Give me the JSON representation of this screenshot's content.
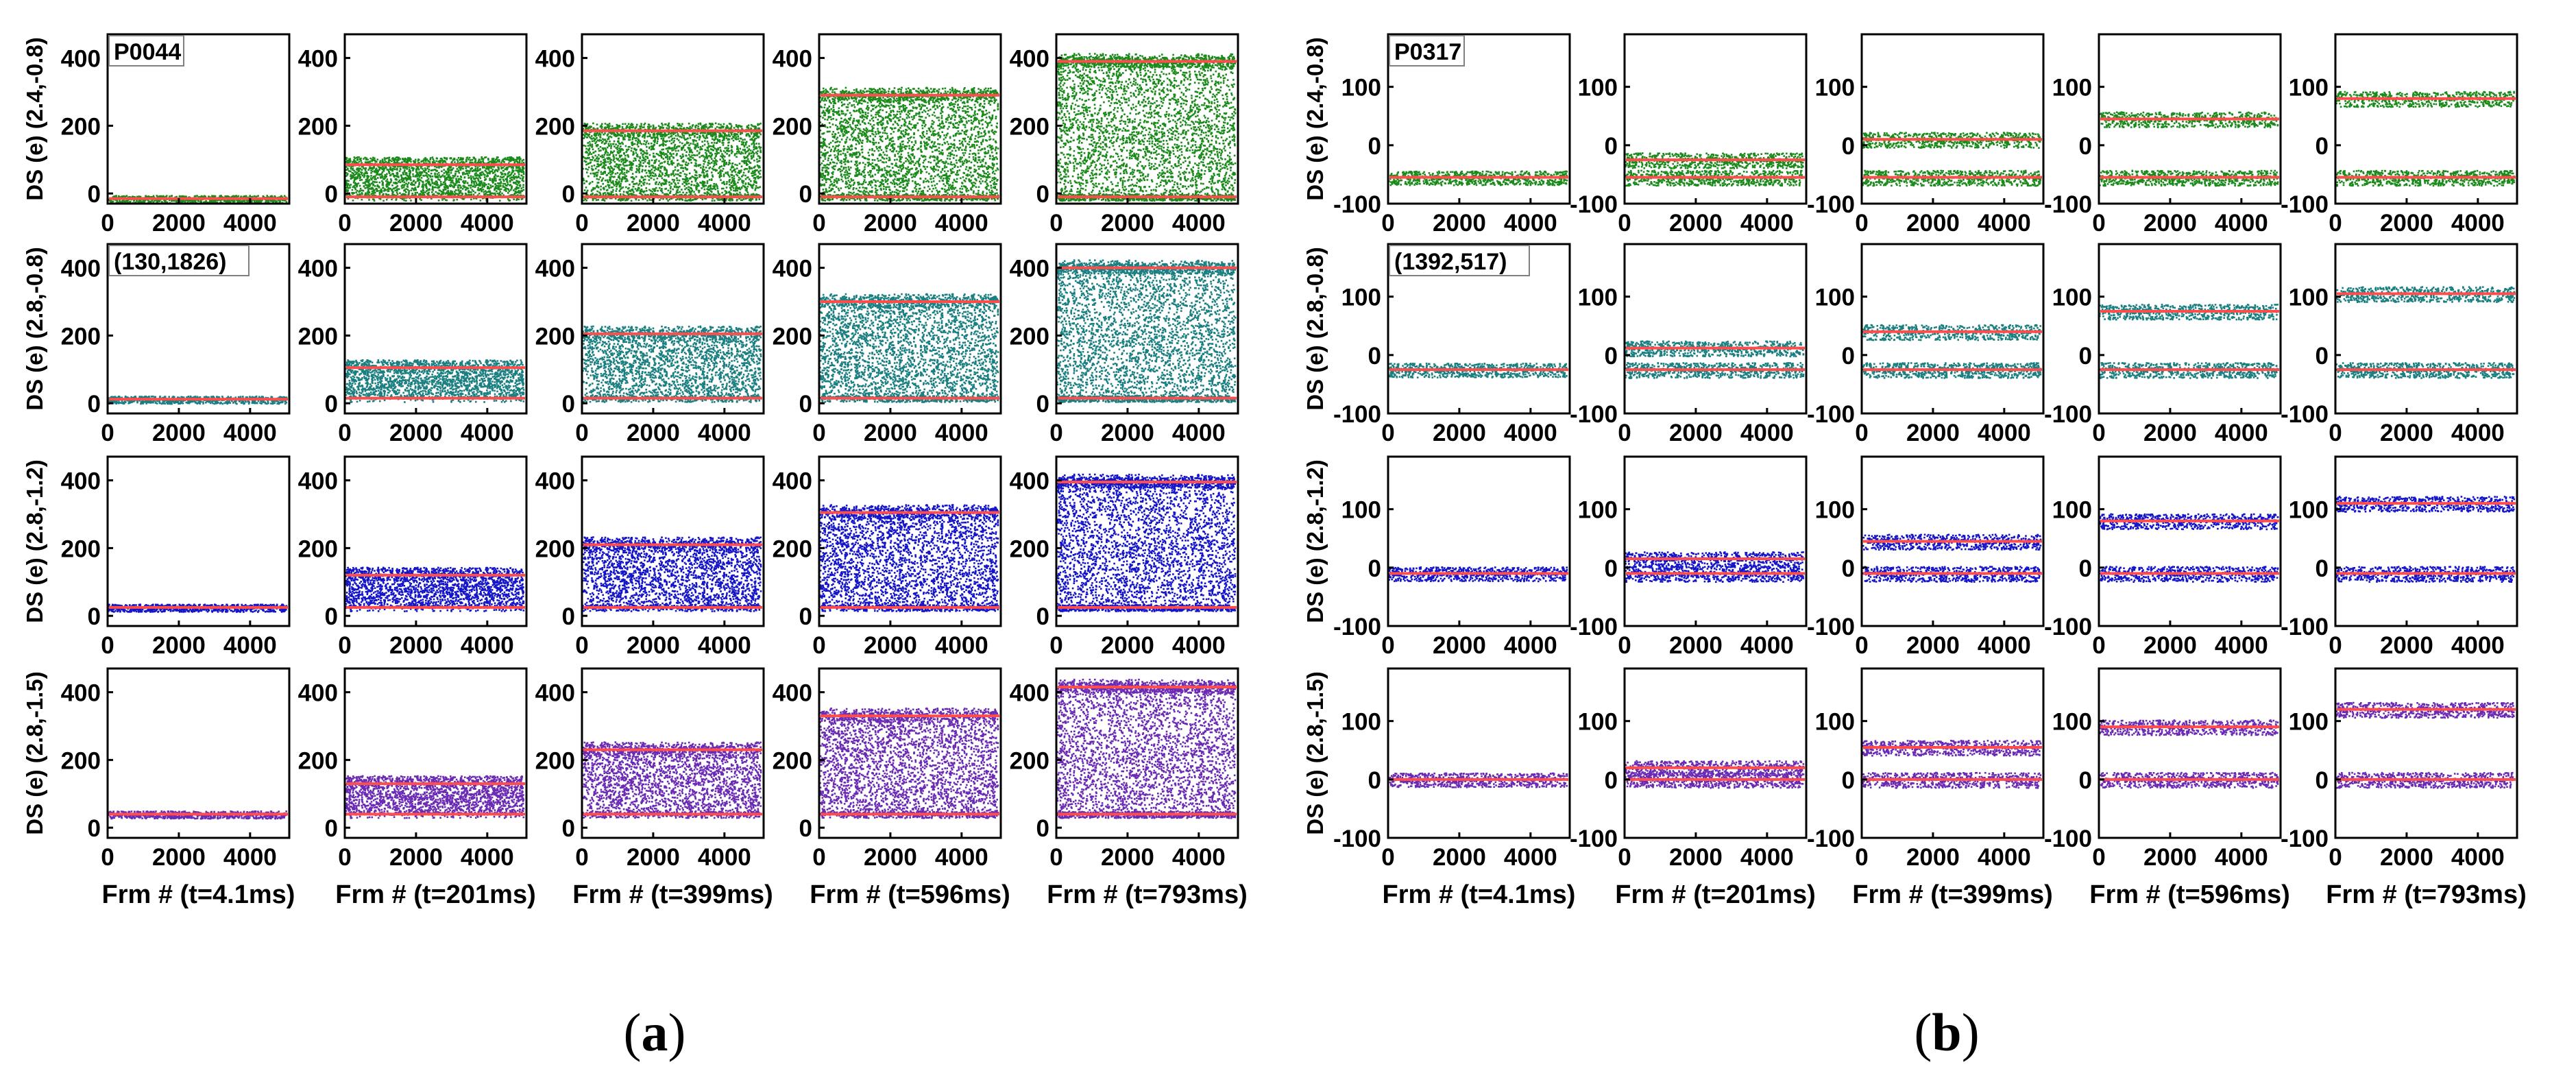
{
  "colors": {
    "row_colors": [
      "#1a8a1a",
      "#1a7f80",
      "#1414c8",
      "#6a2ab4"
    ],
    "fit_line": "#ff4d4d",
    "axis": "#000000"
  },
  "chart_data": [
    {
      "type": "scatter",
      "name": "panel-a",
      "caption": "a",
      "caption_prefix": "(",
      "caption_suffix": ")",
      "pixel_label": "P0044",
      "coord_label": "(130,1826)",
      "ylim": [
        -30,
        470
      ],
      "yticks": [
        0,
        200,
        400
      ],
      "xlim": [
        0,
        5100
      ],
      "xticks": [
        0,
        2000,
        4000
      ],
      "ylabels": [
        "DS (e) (2.4,-0.8)",
        "DS (e) (2.8,-0.8)",
        "DS (e) (2.8,-1.2)",
        "DS (e) (2.8,-1.5)"
      ],
      "xlabels": [
        "Frm # (t=4.1ms)",
        "Frm # (t=201ms)",
        "Frm # (t=399ms)",
        "Frm # (t=596ms)",
        "Frm # (t=793ms)"
      ],
      "fit_levels": [
        [
          [
            -15,
            -15
          ],
          [
            -10,
            85
          ],
          [
            -10,
            185
          ],
          [
            -10,
            290
          ],
          [
            -10,
            390
          ]
        ],
        [
          [
            12,
            12
          ],
          [
            15,
            105
          ],
          [
            15,
            205
          ],
          [
            15,
            300
          ],
          [
            15,
            400
          ]
        ],
        [
          [
            25,
            25
          ],
          [
            25,
            120
          ],
          [
            25,
            210
          ],
          [
            25,
            305
          ],
          [
            25,
            395
          ]
        ],
        [
          [
            40,
            40
          ],
          [
            40,
            130
          ],
          [
            40,
            230
          ],
          [
            40,
            330
          ],
          [
            40,
            415
          ]
        ]
      ],
      "point_density": [
        0.02,
        0.1,
        0.18,
        0.22,
        0.28
      ]
    },
    {
      "type": "scatter",
      "name": "panel-b",
      "caption": "b",
      "caption_prefix": "(",
      "caption_suffix": ")",
      "pixel_label": "P0317",
      "coord_label": "(1392,517)",
      "ylim": [
        -100,
        190
      ],
      "yticks": [
        -100,
        0,
        100
      ],
      "xlim": [
        0,
        5100
      ],
      "xticks": [
        0,
        2000,
        4000
      ],
      "ylabels": [
        "DS (e) (2.4,-0.8)",
        "DS (e) (2.8,-0.8)",
        "DS (e) (2.8,-1.2)",
        "DS (e) (2.8,-1.5)"
      ],
      "xlabels": [
        "Frm # (t=4.1ms)",
        "Frm # (t=201ms)",
        "Frm # (t=399ms)",
        "Frm # (t=596ms)",
        "Frm # (t=793ms)"
      ],
      "fit_levels": [
        [
          [
            -55,
            -55
          ],
          [
            -55,
            -25
          ],
          [
            -55,
            10
          ],
          [
            -55,
            45
          ],
          [
            -55,
            80
          ]
        ],
        [
          [
            -25,
            -25
          ],
          [
            -25,
            12
          ],
          [
            -25,
            40
          ],
          [
            -25,
            75
          ],
          [
            -25,
            105
          ]
        ],
        [
          [
            -10,
            -10
          ],
          [
            -10,
            15
          ],
          [
            -10,
            45
          ],
          [
            -10,
            80
          ],
          [
            -10,
            110
          ]
        ],
        [
          [
            0,
            0
          ],
          [
            0,
            20
          ],
          [
            0,
            55
          ],
          [
            0,
            90
          ],
          [
            0,
            120
          ]
        ]
      ],
      "point_density": [
        0.02,
        0.06,
        0.08,
        0.1,
        0.12
      ]
    }
  ]
}
